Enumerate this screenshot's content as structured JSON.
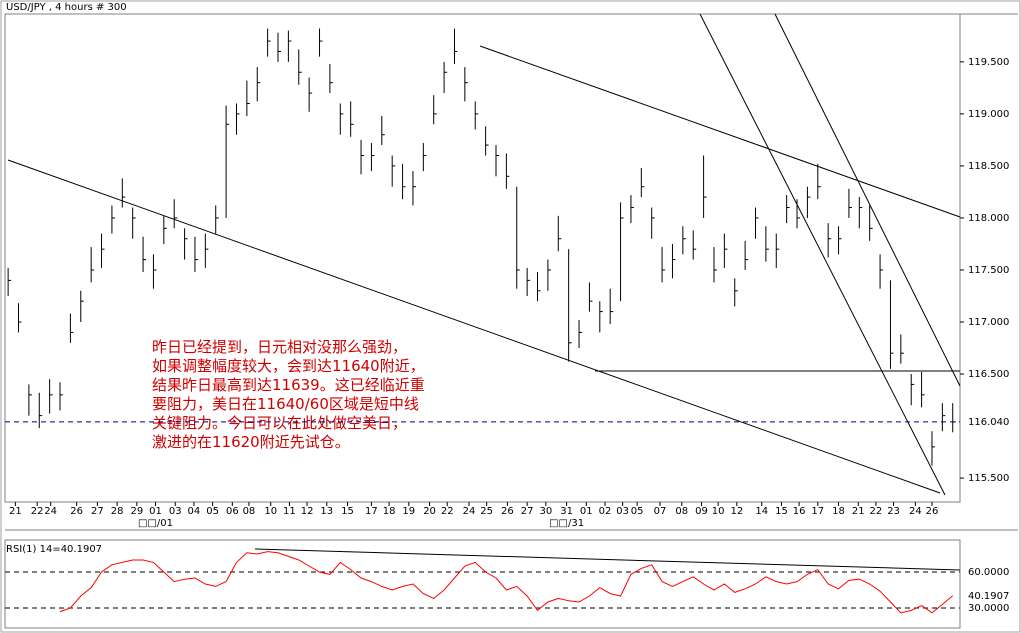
{
  "chart_data": [
    {
      "type": "ohlc",
      "title": "USD/JPY , 4 hours # 300",
      "color": "#000000",
      "xlim": [
        -0.3,
        91.7
      ],
      "ylim": [
        115.27,
        119.96
      ],
      "yticks": [
        {
          "value": 119.5,
          "label": "119.500"
        },
        {
          "value": 119,
          "label": "119.000"
        },
        {
          "value": 118.5,
          "label": "118.500"
        },
        {
          "value": 118,
          "label": "118.000"
        },
        {
          "value": 117.5,
          "label": "117.500"
        },
        {
          "value": 117,
          "label": "117.000"
        },
        {
          "value": 116.5,
          "label": "116.500"
        },
        {
          "value": 115.5,
          "label": "115.500"
        }
      ],
      "xticks": [
        {
          "value": 0.7,
          "label": "21"
        },
        {
          "value": 2.8,
          "label": "22"
        },
        {
          "value": 4.1,
          "label": "24"
        },
        {
          "value": 6.6,
          "label": "26"
        },
        {
          "value": 8.6,
          "label": "27"
        },
        {
          "value": 10.5,
          "label": "28"
        },
        {
          "value": 12.4,
          "label": "29"
        },
        {
          "value": 14.2,
          "label": "01"
        },
        {
          "value": 16.1,
          "label": "03"
        },
        {
          "value": 17.9,
          "label": "04"
        },
        {
          "value": 19.7,
          "label": "05"
        },
        {
          "value": 21.6,
          "label": "06"
        },
        {
          "value": 23.2,
          "label": "08"
        },
        {
          "value": 25.3,
          "label": "10"
        },
        {
          "value": 27.1,
          "label": "11"
        },
        {
          "value": 28.8,
          "label": "12"
        },
        {
          "value": 30.7,
          "label": "13"
        },
        {
          "value": 32.7,
          "label": "15"
        },
        {
          "value": 35.0,
          "label": "17"
        },
        {
          "value": 36.7,
          "label": "18"
        },
        {
          "value": 38.6,
          "label": "19"
        },
        {
          "value": 40.6,
          "label": "20"
        },
        {
          "value": 42.3,
          "label": "22"
        },
        {
          "value": 44.4,
          "label": "24"
        },
        {
          "value": 46.1,
          "label": "25"
        },
        {
          "value": 48.1,
          "label": "26"
        },
        {
          "value": 50.0,
          "label": "27"
        },
        {
          "value": 51.8,
          "label": "30"
        },
        {
          "value": 53.8,
          "label": "31"
        },
        {
          "value": 55.7,
          "label": "01"
        },
        {
          "value": 57.5,
          "label": "02"
        },
        {
          "value": 59.2,
          "label": "03"
        },
        {
          "value": 60.6,
          "label": "05"
        },
        {
          "value": 62.8,
          "label": "07"
        },
        {
          "value": 64.9,
          "label": "08"
        },
        {
          "value": 66.8,
          "label": "09"
        },
        {
          "value": 68.4,
          "label": "10"
        },
        {
          "value": 70.2,
          "label": "12"
        },
        {
          "value": 72.6,
          "label": "14"
        },
        {
          "value": 74.5,
          "label": "15"
        },
        {
          "value": 76.2,
          "label": "16"
        },
        {
          "value": 78.0,
          "label": "17"
        },
        {
          "value": 80.0,
          "label": "18"
        },
        {
          "value": 81.9,
          "label": "21"
        },
        {
          "value": 83.6,
          "label": "22"
        },
        {
          "value": 85.3,
          "label": "23"
        },
        {
          "value": 87.4,
          "label": "24"
        },
        {
          "value": 89.0,
          "label": "26"
        }
      ],
      "x_period_labels": [
        {
          "value": 14.2,
          "label": "□□/01"
        },
        {
          "value": 53.8,
          "label": "□□/31"
        }
      ],
      "high": [
        117.52,
        117.18,
        116.4,
        116.32,
        116.45,
        116.42,
        117.08,
        117.3,
        117.72,
        117.85,
        118.12,
        118.38,
        118.1,
        117.82,
        117.65,
        118.02,
        118.18,
        117.9,
        117.82,
        117.85,
        118.12,
        119.08,
        119.1,
        119.32,
        119.45,
        119.82,
        119.78,
        119.8,
        119.62,
        119.35,
        119.82,
        119.48,
        119.1,
        119.12,
        118.75,
        118.72,
        118.98,
        118.6,
        118.52,
        118.45,
        118.72,
        119.18,
        119.5,
        119.82,
        119.45,
        119.12,
        118.88,
        118.7,
        118.62,
        118.3,
        117.52,
        117.48,
        117.6,
        118.02,
        117.7,
        117.02,
        117.38,
        117.2,
        117.32,
        118.15,
        118.22,
        118.48,
        118.1,
        117.72,
        117.75,
        117.92,
        117.88,
        118.6,
        117.72,
        117.85,
        117.42,
        117.78,
        118.1,
        117.92,
        117.85,
        118.22,
        118.18,
        118.3,
        118.52,
        117.95,
        117.92,
        118.28,
        118.2,
        118.12,
        117.65,
        117.4,
        116.88,
        116.5,
        116.52,
        115.95,
        116.22,
        116.22
      ],
      "low": [
        117.25,
        116.9,
        116.1,
        115.98,
        116.12,
        116.15,
        116.8,
        117.0,
        117.38,
        117.52,
        117.85,
        118.1,
        117.8,
        117.48,
        117.32,
        117.75,
        117.9,
        117.6,
        117.48,
        117.52,
        117.85,
        118.0,
        118.8,
        118.98,
        119.12,
        119.55,
        119.5,
        119.5,
        119.28,
        119.02,
        119.55,
        119.2,
        118.8,
        118.78,
        118.42,
        118.45,
        118.7,
        118.3,
        118.18,
        118.12,
        118.45,
        118.9,
        119.2,
        119.48,
        119.12,
        118.85,
        118.6,
        118.4,
        118.28,
        117.32,
        117.25,
        117.2,
        117.3,
        117.68,
        116.62,
        116.75,
        117.1,
        116.9,
        116.98,
        117.2,
        117.95,
        118.2,
        117.8,
        117.38,
        117.42,
        117.65,
        117.6,
        118.0,
        117.38,
        117.52,
        117.15,
        117.5,
        117.8,
        117.58,
        117.52,
        117.95,
        117.9,
        118.0,
        118.18,
        117.62,
        117.65,
        118.0,
        117.9,
        117.78,
        117.32,
        116.55,
        116.6,
        116.2,
        116.18,
        115.62,
        115.95,
        115.94
      ],
      "close": [
        117.4,
        117.0,
        116.3,
        116.1,
        116.3,
        116.3,
        116.9,
        117.2,
        117.5,
        117.7,
        118.0,
        118.2,
        118.0,
        117.6,
        117.5,
        117.9,
        118.0,
        117.8,
        117.6,
        117.7,
        118.0,
        118.9,
        119.0,
        119.1,
        119.3,
        119.7,
        119.6,
        119.7,
        119.4,
        119.2,
        119.7,
        119.3,
        119.0,
        118.9,
        118.6,
        118.6,
        118.8,
        118.5,
        118.3,
        118.3,
        118.6,
        119.0,
        119.4,
        119.6,
        119.3,
        119.0,
        118.7,
        118.6,
        118.4,
        117.5,
        117.4,
        117.3,
        117.5,
        117.8,
        116.8,
        116.9,
        117.2,
        117.1,
        117.1,
        118.0,
        118.1,
        118.3,
        118.0,
        117.5,
        117.6,
        117.8,
        117.7,
        118.2,
        117.5,
        117.7,
        117.3,
        117.6,
        118.0,
        117.7,
        117.7,
        118.1,
        118.0,
        118.2,
        118.3,
        117.8,
        117.8,
        118.1,
        118.1,
        117.9,
        117.5,
        116.7,
        116.7,
        116.4,
        116.3,
        115.8,
        116.1,
        116.04
      ],
      "current": {
        "value": 116.04,
        "label": "116.040"
      },
      "current_color": "#000080",
      "annotation": [
        "昨日已经提到，日元相对没那么强劲，",
        "如果调整幅度较大，会到达11640附近，",
        "结果昨日最高到达11639。这已经临近重",
        "要阻力，美日在11640/60区域是短中线",
        "关键阻力。今日可以在此处做空美日，",
        "激进的在11620附近先试仓。"
      ]
    },
    {
      "type": "line",
      "title": "RSI(1) 14=40.1907",
      "color": "#ff0000",
      "last_color": "#0000ff",
      "xlim": [
        -0.3,
        91.7
      ],
      "ylim": [
        13.3,
        86.7
      ],
      "yticks": [
        {
          "value": 60,
          "label": "60.0000"
        },
        {
          "value": 30,
          "label": "30.0000"
        }
      ],
      "values": [
        null,
        null,
        null,
        null,
        null,
        27,
        30,
        40,
        47,
        60,
        66,
        68,
        70,
        70,
        68,
        60,
        52,
        54,
        55,
        50,
        48,
        52,
        68,
        76,
        75,
        77,
        76,
        73,
        70,
        65,
        60,
        58,
        68,
        62,
        55,
        52,
        48,
        45,
        48,
        50,
        42,
        38,
        45,
        55,
        65,
        68,
        60,
        55,
        45,
        48,
        40,
        28,
        35,
        38,
        36,
        35,
        40,
        47,
        42,
        40,
        58,
        63,
        66,
        52,
        48,
        52,
        56,
        50,
        45,
        50,
        43,
        46,
        50,
        56,
        52,
        50,
        52,
        58,
        62,
        50,
        46,
        53,
        54,
        50,
        44,
        35,
        26,
        28,
        32,
        26,
        33,
        40.1907
      ]
    }
  ]
}
